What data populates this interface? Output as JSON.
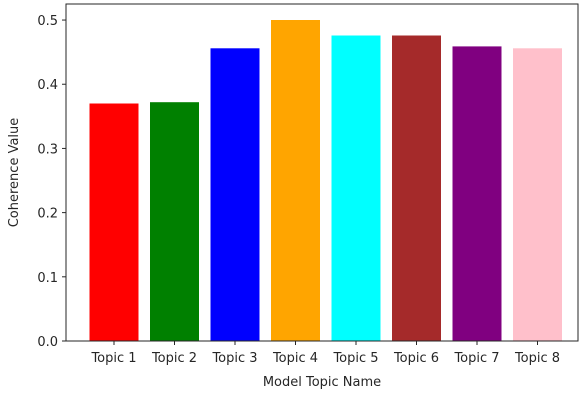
{
  "chart_data": {
    "type": "bar",
    "title": "",
    "xlabel": "Model Topic Name",
    "ylabel": "Coherence Value",
    "categories": [
      "Topic 1",
      "Topic 2",
      "Topic 3",
      "Topic 4",
      "Topic 5",
      "Topic 6",
      "Topic 7",
      "Topic 8"
    ],
    "values": [
      0.37,
      0.372,
      0.456,
      0.5,
      0.476,
      0.476,
      0.459,
      0.456
    ],
    "colors": [
      "#ff0000",
      "#008000",
      "#0000ff",
      "#ffa500",
      "#00ffff",
      "#a52a2a",
      "#800080",
      "#ffc0cb"
    ],
    "ylim": [
      0,
      0.525
    ],
    "yticks": [
      {
        "value": 0.0,
        "label": "0.0"
      },
      {
        "value": 0.1,
        "label": "0.1"
      },
      {
        "value": 0.2,
        "label": "0.2"
      },
      {
        "value": 0.3,
        "label": "0.3"
      },
      {
        "value": 0.4,
        "label": "0.4"
      },
      {
        "value": 0.5,
        "label": "0.5"
      }
    ],
    "grid": false,
    "legend": "none"
  }
}
